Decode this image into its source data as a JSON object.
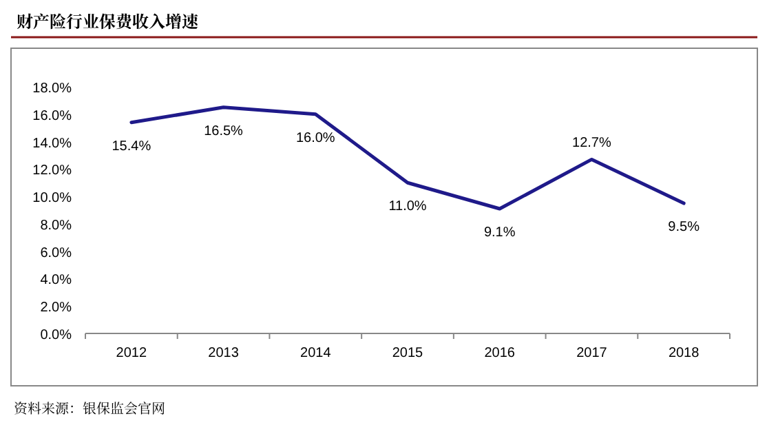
{
  "chart_data": {
    "type": "line",
    "title": "财产险行业保费收入增速",
    "categories": [
      "2012",
      "2013",
      "2014",
      "2015",
      "2016",
      "2017",
      "2018"
    ],
    "series": [
      {
        "color": "#1f1a8a",
        "values": [
          15.4,
          16.5,
          16.0,
          11.0,
          9.1,
          12.7,
          9.5
        ],
        "value_labels": [
          "15.4%",
          "16.5%",
          "16.0%",
          "11.0%",
          "9.1%",
          "12.7%",
          "9.5%"
        ]
      }
    ],
    "ylim": [
      0,
      18
    ],
    "yticks": [
      {
        "value": 0,
        "label": "0.0%"
      },
      {
        "value": 2,
        "label": "2.0%"
      },
      {
        "value": 4,
        "label": "4.0%"
      },
      {
        "value": 6,
        "label": "6.0%"
      },
      {
        "value": 8,
        "label": "8.0%"
      },
      {
        "value": 10,
        "label": "10.0%"
      },
      {
        "value": 12,
        "label": "12.0%"
      },
      {
        "value": 14,
        "label": "14.0%"
      },
      {
        "value": 16,
        "label": "16.0%"
      },
      {
        "value": 18,
        "label": "18.0%"
      }
    ],
    "grid": false,
    "marker": "none",
    "line_style": "solid",
    "annotations": [
      "资料来源：银保监会官网"
    ]
  }
}
